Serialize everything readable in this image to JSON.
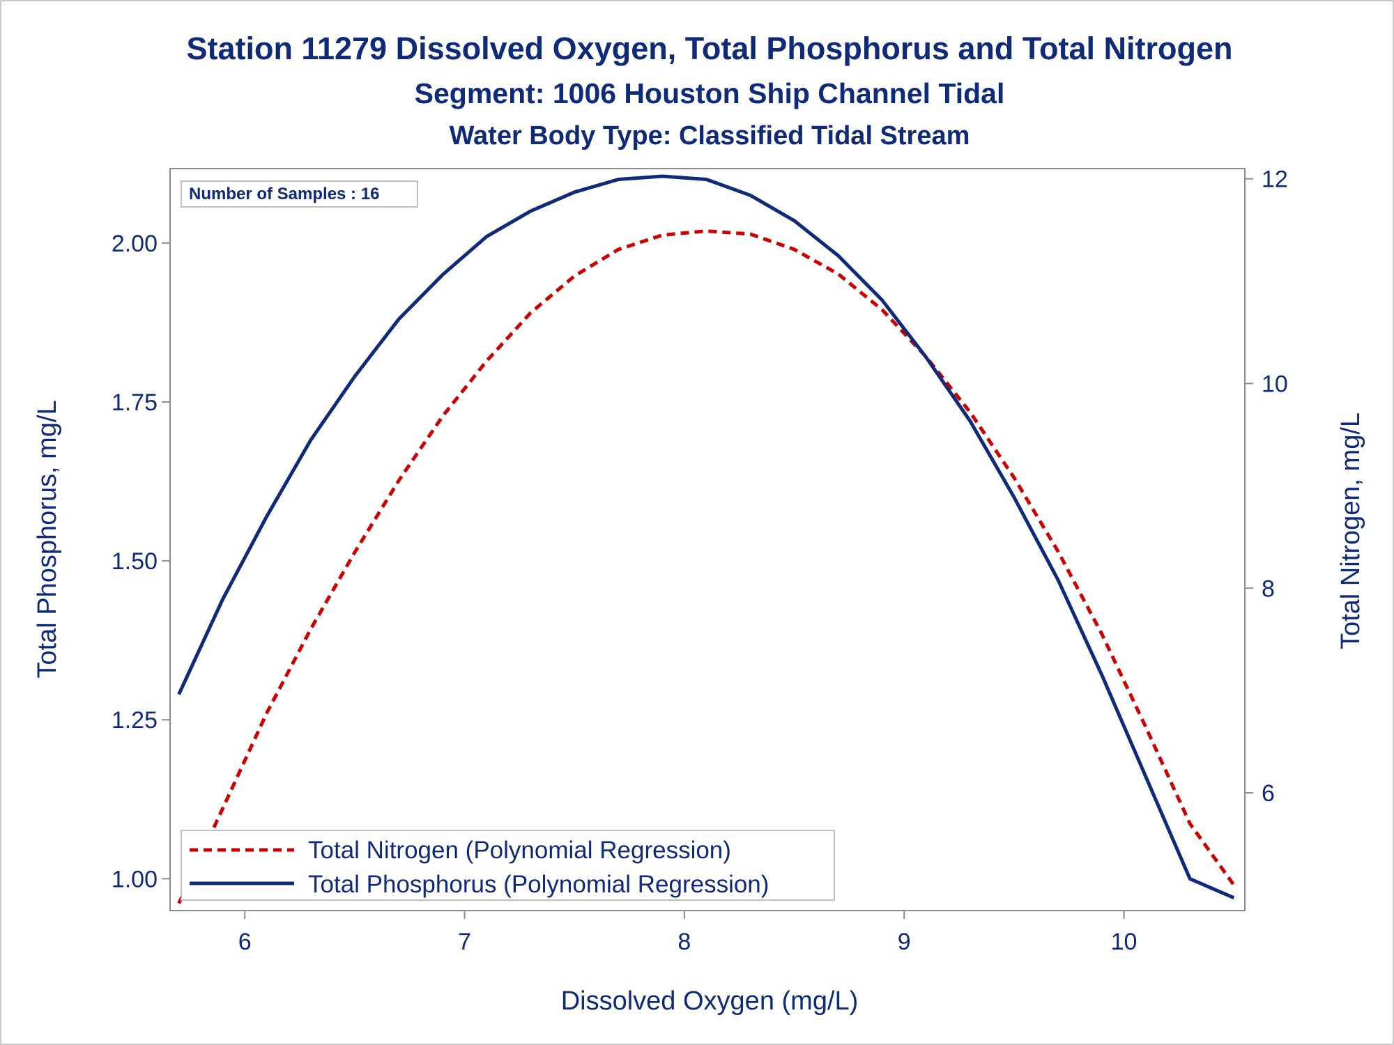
{
  "chart_data": {
    "type": "line",
    "title": "Station 11279  Dissolved Oxygen, Total Phosphorus and Total Nitrogen",
    "subtitle": "Segment: 1006  Houston Ship Channel Tidal",
    "subtitle2": "Water Body Type: Classified Tidal Stream",
    "xlabel": "Dissolved Oxygen (mg/L)",
    "ylabel_left": "Total Phosphorus, mg/L",
    "ylabel_right": "Total Nitrogen, mg/L",
    "annotation": "Number of Samples : 16",
    "x_ticks": [
      "6",
      "7",
      "8",
      "9",
      "10"
    ],
    "y_left_ticks": [
      "1.00",
      "1.25",
      "1.50",
      "1.75",
      "2.00"
    ],
    "y_right_ticks": [
      "6",
      "8",
      "10",
      "12"
    ],
    "xlim": [
      5.66,
      10.55
    ],
    "ylim_left": [
      0.95,
      2.117
    ],
    "ylim_right": [
      4.85,
      12.1
    ],
    "grid": false,
    "legend_position": "bottom-left",
    "series": [
      {
        "name": "Total Nitrogen (Polynomial Regression)",
        "axis": "right",
        "color": "#cc0000",
        "style": "dashed",
        "x": [
          5.7,
          5.9,
          6.1,
          6.3,
          6.5,
          6.7,
          6.9,
          7.1,
          7.3,
          7.5,
          7.7,
          7.9,
          8.1,
          8.3,
          8.5,
          8.7,
          8.9,
          9.1,
          9.3,
          9.5,
          9.7,
          9.9,
          10.1,
          10.3,
          10.5
        ],
        "y": [
          4.92,
          5.85,
          6.78,
          7.6,
          8.35,
          9.05,
          9.68,
          10.22,
          10.69,
          11.05,
          11.31,
          11.45,
          11.49,
          11.46,
          11.31,
          11.07,
          10.72,
          10.26,
          9.72,
          9.08,
          8.36,
          7.55,
          6.64,
          5.7,
          5.1
        ]
      },
      {
        "name": "Total Phosphorus (Polynomial Regression)",
        "axis": "left",
        "color": "#0e2a78",
        "style": "solid",
        "x": [
          5.7,
          5.9,
          6.1,
          6.3,
          6.5,
          6.7,
          6.9,
          7.1,
          7.3,
          7.5,
          7.7,
          7.9,
          8.1,
          8.3,
          8.5,
          8.7,
          8.9,
          9.1,
          9.3,
          9.5,
          9.7,
          9.9,
          10.1,
          10.3,
          10.5
        ],
        "y": [
          1.29,
          1.44,
          1.57,
          1.69,
          1.79,
          1.88,
          1.95,
          2.01,
          2.05,
          2.08,
          2.1,
          2.105,
          2.1,
          2.075,
          2.035,
          1.98,
          1.91,
          1.82,
          1.72,
          1.6,
          1.47,
          1.32,
          1.16,
          1.0,
          0.97
        ]
      }
    ]
  }
}
